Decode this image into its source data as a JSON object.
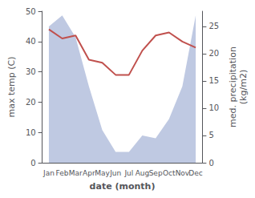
{
  "chart_data": {
    "type": "line",
    "categories": [
      "Jan",
      "Feb",
      "Mar",
      "Apr",
      "May",
      "Jun",
      "Jul",
      "Aug",
      "Sep",
      "Oct",
      "Nov",
      "Dec"
    ],
    "xlabel": "date (month)",
    "ylabel": "max temp (C)",
    "y2label": "med. precipitation\n(kg/m2)",
    "ylim": [
      0,
      50
    ],
    "yticks": [
      0,
      10,
      20,
      30,
      40,
      50
    ],
    "y2lim": [
      0,
      27.78
    ],
    "y2ticks": [
      0,
      5,
      10,
      15,
      20,
      25
    ],
    "grid": false,
    "series": [
      {
        "type": "area",
        "color": "#bfc9e2",
        "axis": "y2",
        "values": [
          25,
          27,
          23,
          14,
          6,
          2,
          2,
          5,
          4.5,
          8,
          14,
          27
        ]
      },
      {
        "type": "line",
        "color": "#c0504d",
        "values": [
          44,
          41,
          42,
          34,
          33,
          29,
          29,
          37,
          42,
          43,
          40,
          38
        ]
      }
    ]
  }
}
